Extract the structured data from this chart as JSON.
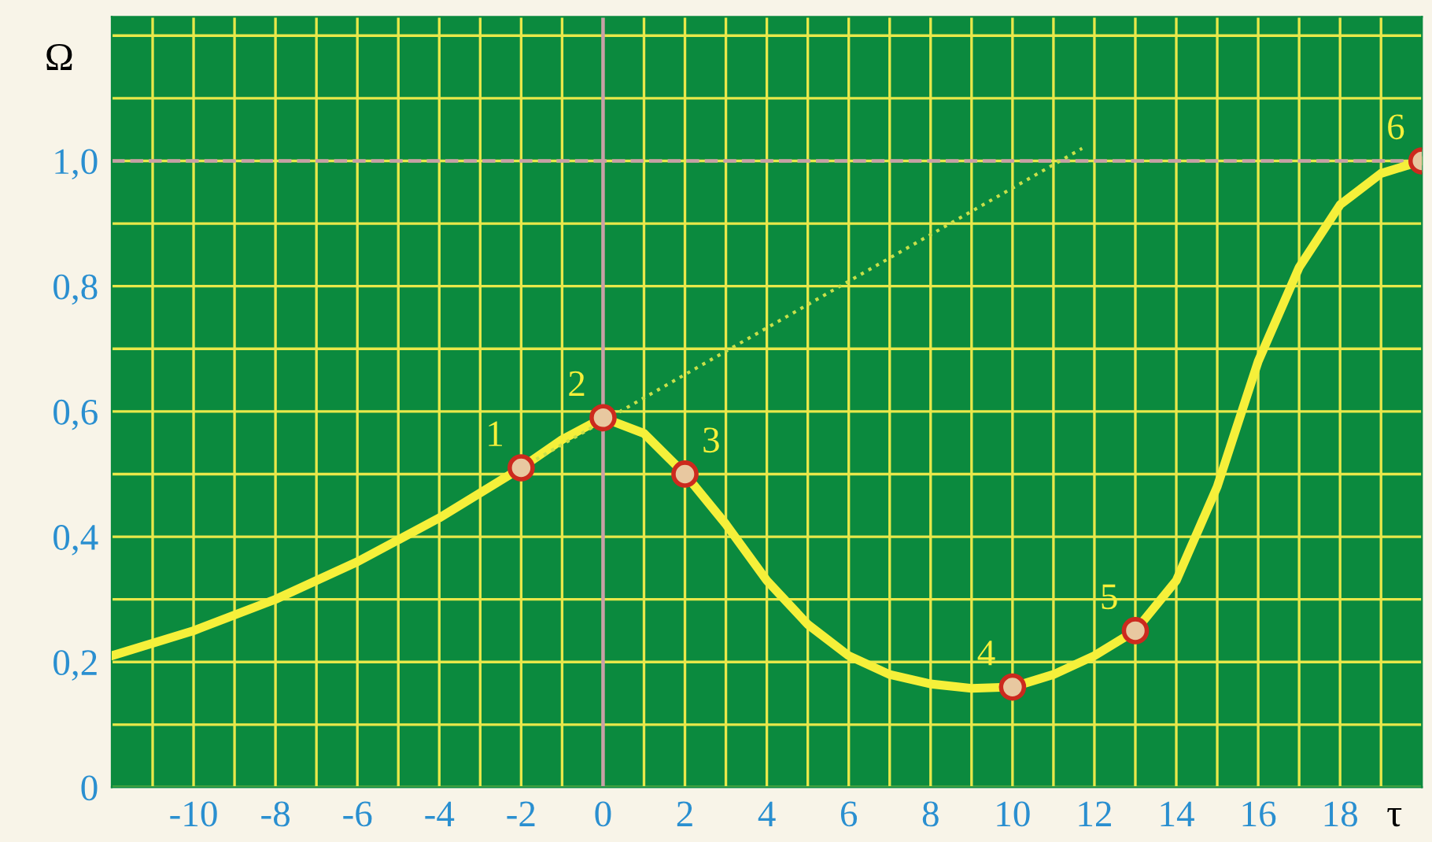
{
  "chart_data": {
    "type": "line",
    "xlabel": "τ",
    "ylabel": "Ω",
    "xlim": [
      -12,
      20
    ],
    "ylim": [
      0,
      1.23
    ],
    "xticks": [
      {
        "value": -11,
        "label": null
      },
      {
        "value": -10,
        "label": "-10"
      },
      {
        "value": -9,
        "label": null
      },
      {
        "value": -8,
        "label": "-8"
      },
      {
        "value": -7,
        "label": null
      },
      {
        "value": -6,
        "label": "-6"
      },
      {
        "value": -5,
        "label": null
      },
      {
        "value": -4,
        "label": "-4"
      },
      {
        "value": -3,
        "label": null
      },
      {
        "value": -2,
        "label": "-2"
      },
      {
        "value": -1,
        "label": null
      },
      {
        "value": 0,
        "label": "0"
      },
      {
        "value": 1,
        "label": null
      },
      {
        "value": 2,
        "label": "2"
      },
      {
        "value": 3,
        "label": null
      },
      {
        "value": 4,
        "label": "4"
      },
      {
        "value": 5,
        "label": null
      },
      {
        "value": 6,
        "label": "6"
      },
      {
        "value": 7,
        "label": null
      },
      {
        "value": 8,
        "label": "8"
      },
      {
        "value": 9,
        "label": null
      },
      {
        "value": 10,
        "label": "10"
      },
      {
        "value": 11,
        "label": null
      },
      {
        "value": 12,
        "label": "12"
      },
      {
        "value": 13,
        "label": null
      },
      {
        "value": 14,
        "label": "14"
      },
      {
        "value": 15,
        "label": null
      },
      {
        "value": 16,
        "label": "16"
      },
      {
        "value": 17,
        "label": null
      },
      {
        "value": 18,
        "label": "18"
      },
      {
        "value": 19,
        "label": null
      }
    ],
    "yticks": [
      {
        "value": 0,
        "label": "0"
      },
      {
        "value": 0.1,
        "label": null
      },
      {
        "value": 0.2,
        "label": "0,2"
      },
      {
        "value": 0.3,
        "label": null
      },
      {
        "value": 0.4,
        "label": "0,4"
      },
      {
        "value": 0.5,
        "label": null
      },
      {
        "value": 0.6,
        "label": "0,6"
      },
      {
        "value": 0.7,
        "label": null
      },
      {
        "value": 0.8,
        "label": "0,8"
      },
      {
        "value": 0.9,
        "label": null
      },
      {
        "value": 1.0,
        "label": "1,0"
      },
      {
        "value": 1.1,
        "label": null
      },
      {
        "value": 1.2,
        "label": null
      }
    ],
    "grid": true,
    "series": [
      {
        "color": "#f5f03a",
        "x": [
          -12,
          -10,
          -8,
          -6,
          -4,
          -2,
          -1,
          0,
          1,
          2,
          3,
          4,
          5,
          6,
          7,
          8,
          9,
          10,
          11,
          12,
          13,
          14,
          15,
          16,
          17,
          18,
          19,
          20
        ],
        "values": [
          0.21,
          0.25,
          0.3,
          0.36,
          0.43,
          0.51,
          0.555,
          0.59,
          0.565,
          0.5,
          0.42,
          0.33,
          0.26,
          0.21,
          0.18,
          0.165,
          0.158,
          0.16,
          0.18,
          0.21,
          0.25,
          0.33,
          0.48,
          0.68,
          0.83,
          0.93,
          0.98,
          1.0
        ]
      },
      {
        "type": "line",
        "color": "#c8e04a",
        "line_style": "dotted",
        "x": [
          -2,
          11.7
        ],
        "values": [
          0.51,
          1.02
        ]
      },
      {
        "type": "scatter",
        "color": "#cc2a1e",
        "marker": "circle",
        "x": [
          -2,
          0,
          2,
          10,
          13,
          20
        ],
        "values": [
          0.51,
          0.59,
          0.5,
          0.16,
          0.25,
          1.0
        ]
      }
    ],
    "ref_lines": [
      {
        "axis": "x",
        "value": 0,
        "color": "#c8a0a8"
      },
      {
        "axis": "y",
        "value": 1.0,
        "color": "#c8a0a8",
        "line_style": "dashed"
      }
    ],
    "annotations": [
      {
        "text": "1",
        "x": -2,
        "y": 0.51
      },
      {
        "text": "2",
        "x": 0,
        "y": 0.59
      },
      {
        "text": "3",
        "x": 2,
        "y": 0.5
      },
      {
        "text": "4",
        "x": 10,
        "y": 0.16
      },
      {
        "text": "5",
        "x": 13,
        "y": 0.25
      },
      {
        "text": "6",
        "x": 20,
        "y": 1.0
      }
    ]
  }
}
